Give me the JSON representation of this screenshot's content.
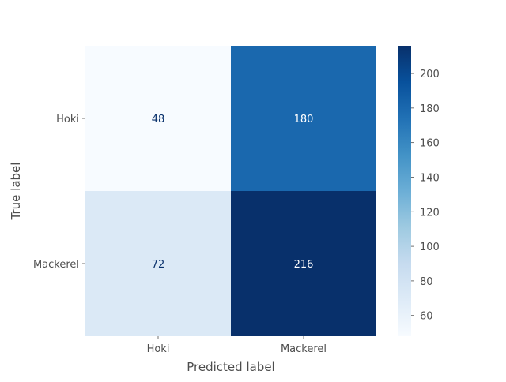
{
  "chart_data": {
    "type": "heatmap",
    "title": "",
    "xlabel": "Predicted label",
    "ylabel": "True label",
    "x_categories": [
      "Hoki",
      "Mackerel"
    ],
    "y_categories": [
      "Hoki",
      "Mackerel"
    ],
    "matrix": [
      [
        48,
        180
      ],
      [
        72,
        216
      ]
    ],
    "colormap": "Blues",
    "color_range": [
      48,
      216
    ],
    "colorbar_ticks": [
      60,
      80,
      100,
      120,
      140,
      160,
      180,
      200
    ],
    "colors": {
      "cell_min": "#f7fbff",
      "cell_max": "#08306b",
      "text_on_light": "#08306b",
      "text_on_dark": "#ffffff",
      "axis_text": "#4d4d4d"
    }
  }
}
